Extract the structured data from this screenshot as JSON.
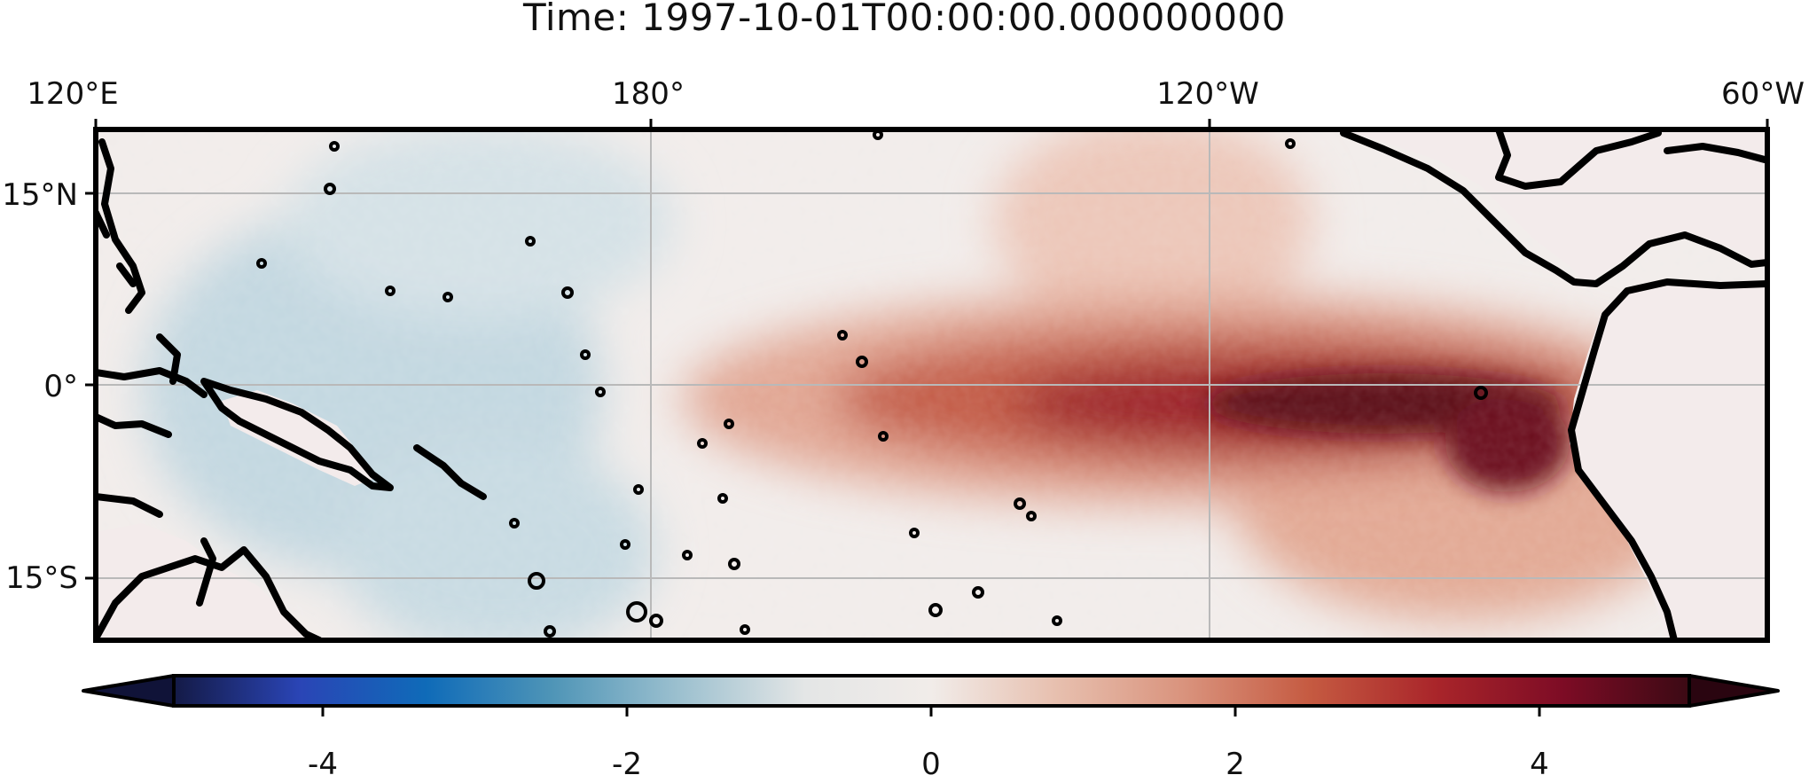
{
  "title": "Time:  1997-10-01T00:00:00.000000000",
  "map": {
    "longitude_labels": [
      "120°E",
      "180°",
      "120°W",
      "60°W"
    ],
    "latitude_labels": [
      "15°N",
      "0°",
      "15°S"
    ],
    "gridlines": true,
    "colors": {
      "land": "#f3ebeb",
      "coastline": "#000000",
      "gridline": "#b9b9b9",
      "neutral": "#f1ecea",
      "cool": "#b6d1dc",
      "warm": "#d98a77",
      "hot": "#4a0a14"
    }
  },
  "colorbar": {
    "ticks": [
      "-4",
      "-2",
      "0",
      "2",
      "4"
    ],
    "extend": "both",
    "colormap": [
      "#141a46",
      "#2a45b6",
      "#0f6bb8",
      "#4f95b7",
      "#9cc0cf",
      "#e4e6e6",
      "#f1ece9",
      "#e7bfae",
      "#d9937d",
      "#c55a41",
      "#a9252a",
      "#7d0c25",
      "#3b0a14"
    ]
  }
}
